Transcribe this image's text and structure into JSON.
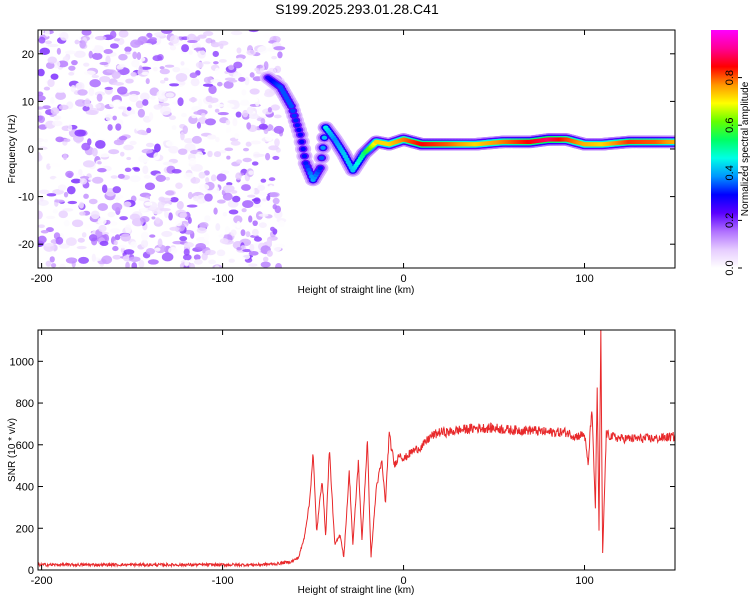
{
  "title": "S199.2025.293.01.28.C41",
  "chart_data": [
    {
      "type": "heatmap",
      "xlabel": "Height of straight line (km)",
      "ylabel": "Frequency (Hz)",
      "xlim": [
        -202,
        150
      ],
      "ylim": [
        -25,
        25
      ],
      "xticks": [
        -200,
        -100,
        0,
        100
      ],
      "yticks": [
        -20,
        -10,
        0,
        10,
        20
      ],
      "colorbar": {
        "label": "Normalized spectral amplitude",
        "range": [
          0,
          1
        ],
        "ticks": [
          "0.0",
          "0.2",
          "0.4",
          "0.6",
          "0.8"
        ],
        "colors": [
          "#ffffff",
          "#e6ccff",
          "#b070ff",
          "#5a00ff",
          "#0000ff",
          "#0096ff",
          "#00ffe6",
          "#00ff64",
          "#64ff00",
          "#ffff00",
          "#ff9600",
          "#ff0000",
          "#ff0096",
          "#ff00ff"
        ]
      },
      "ridge": [
        {
          "x": -75,
          "f": 15.0,
          "a": 0.28
        },
        {
          "x": -68,
          "f": 13.0,
          "a": 0.35
        },
        {
          "x": -62,
          "f": 9.0,
          "a": 0.35
        },
        {
          "x": -57,
          "f": 3.0,
          "a": 0.3
        },
        {
          "x": -54,
          "f": -3.0,
          "a": 0.32
        },
        {
          "x": -50,
          "f": -6.5,
          "a": 0.4
        },
        {
          "x": -46,
          "f": -4.0,
          "a": 0.32
        },
        {
          "x": -43,
          "f": 4.5,
          "a": 0.45
        },
        {
          "x": -38,
          "f": 2.0,
          "a": 0.38
        },
        {
          "x": -33,
          "f": -1.0,
          "a": 0.42
        },
        {
          "x": -28,
          "f": -4.5,
          "a": 0.42
        },
        {
          "x": -22,
          "f": -1.0,
          "a": 0.52
        },
        {
          "x": -15,
          "f": 1.5,
          "a": 0.72
        },
        {
          "x": -8,
          "f": 1.0,
          "a": 0.72
        },
        {
          "x": 0,
          "f": 2.0,
          "a": 0.78
        },
        {
          "x": 10,
          "f": 1.0,
          "a": 0.85
        },
        {
          "x": 25,
          "f": 1.0,
          "a": 0.8
        },
        {
          "x": 40,
          "f": 1.0,
          "a": 0.72
        },
        {
          "x": 55,
          "f": 1.5,
          "a": 0.78
        },
        {
          "x": 70,
          "f": 1.5,
          "a": 0.85
        },
        {
          "x": 80,
          "f": 2.0,
          "a": 0.9
        },
        {
          "x": 90,
          "f": 2.0,
          "a": 0.82
        },
        {
          "x": 100,
          "f": 1.0,
          "a": 0.75
        },
        {
          "x": 110,
          "f": 1.0,
          "a": 0.72
        },
        {
          "x": 125,
          "f": 1.5,
          "a": 0.82
        },
        {
          "x": 140,
          "f": 1.5,
          "a": 0.8
        },
        {
          "x": 150,
          "f": 1.5,
          "a": 0.75
        }
      ],
      "noise_region": {
        "x_range": [
          -202,
          -67
        ],
        "f_range": [
          -25,
          25
        ],
        "amplitude_range": [
          0.0,
          0.2
        ]
      }
    },
    {
      "type": "line",
      "xlabel": "Height of straight line (km)",
      "ylabel": "SNR (10 * v/v)",
      "xlim": [
        -202,
        150
      ],
      "ylim": [
        0,
        1150
      ],
      "xticks": [
        -200,
        -100,
        0,
        100
      ],
      "yticks": [
        0,
        200,
        400,
        600,
        800,
        1000
      ],
      "color": "#e8292b",
      "series": [
        {
          "name": "SNR",
          "x": [
            -202,
            -180,
            -160,
            -140,
            -120,
            -100,
            -80,
            -70,
            -62,
            -58,
            -55,
            -52,
            -50,
            -48,
            -45,
            -43,
            -41,
            -38,
            -35,
            -33,
            -30,
            -28,
            -25,
            -23,
            -20,
            -18,
            -15,
            -12,
            -10,
            -8,
            -5,
            -2,
            0,
            5,
            10,
            15,
            20,
            25,
            30,
            40,
            50,
            60,
            70,
            80,
            90,
            95,
            100,
            102,
            104,
            106,
            107,
            108,
            109,
            110,
            112,
            115,
            120,
            130,
            140,
            150
          ],
          "values": [
            25,
            25,
            25,
            25,
            25,
            25,
            25,
            30,
            40,
            60,
            150,
            320,
            560,
            180,
            440,
            160,
            580,
            120,
            170,
            60,
            470,
            120,
            520,
            140,
            620,
            60,
            400,
            520,
            320,
            650,
            500,
            560,
            530,
            570,
            590,
            640,
            660,
            660,
            670,
            680,
            680,
            670,
            670,
            660,
            660,
            640,
            650,
            500,
            780,
            300,
            880,
            180,
            1150,
            70,
            650,
            640,
            630,
            630,
            630,
            640
          ]
        }
      ]
    }
  ]
}
